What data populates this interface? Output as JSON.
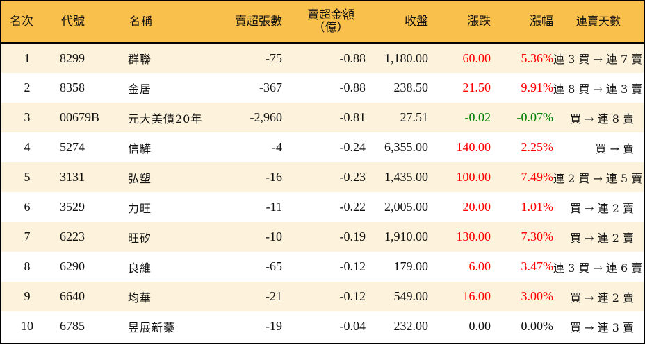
{
  "table": {
    "headers": {
      "rank": "名次",
      "code": "代號",
      "name": "名稱",
      "net_sell_volume": "賣超張數",
      "net_sell_amount_line1": "賣超金額",
      "net_sell_amount_line2": "（億）",
      "close": "收盤",
      "change": "漲跌",
      "change_pct": "漲幅",
      "streak": "連賣天數"
    },
    "colors": {
      "header_bg": "#f9c04c",
      "row_odd_bg": "#fdf3dc",
      "row_even_bg": "#ffffff",
      "up": "#ff0000",
      "down": "#008000",
      "flat": "#111111",
      "border": "#000000"
    },
    "rows": [
      {
        "rank": "1",
        "code": "8299",
        "name": "群聯",
        "volume": "-75",
        "amount": "-0.88",
        "close": "1,180.00",
        "change": "60.00",
        "pct": "5.36%",
        "dir": "up",
        "streak": "連 3 買 → 連 7 賣"
      },
      {
        "rank": "2",
        "code": "8358",
        "name": "金居",
        "volume": "-367",
        "amount": "-0.88",
        "close": "238.50",
        "change": "21.50",
        "pct": "9.91%",
        "dir": "up",
        "streak": "連 8 買 → 連 3 賣"
      },
      {
        "rank": "3",
        "code": "00679B",
        "name": "元大美債20年",
        "volume": "-2,960",
        "amount": "-0.81",
        "close": "27.51",
        "change": "-0.02",
        "pct": "-0.07%",
        "dir": "down",
        "streak": "買 → 連 8 賣"
      },
      {
        "rank": "4",
        "code": "5274",
        "name": "信驊",
        "volume": "-4",
        "amount": "-0.24",
        "close": "6,355.00",
        "change": "140.00",
        "pct": "2.25%",
        "dir": "up",
        "streak": "買 → 賣"
      },
      {
        "rank": "5",
        "code": "3131",
        "name": "弘塑",
        "volume": "-16",
        "amount": "-0.23",
        "close": "1,435.00",
        "change": "100.00",
        "pct": "7.49%",
        "dir": "up",
        "streak": "連 2 買 → 連 5 賣"
      },
      {
        "rank": "6",
        "code": "3529",
        "name": "力旺",
        "volume": "-11",
        "amount": "-0.22",
        "close": "2,005.00",
        "change": "20.00",
        "pct": "1.01%",
        "dir": "up",
        "streak": "買 → 連 2 賣"
      },
      {
        "rank": "7",
        "code": "6223",
        "name": "旺矽",
        "volume": "-10",
        "amount": "-0.19",
        "close": "1,910.00",
        "change": "130.00",
        "pct": "7.30%",
        "dir": "up",
        "streak": "買 → 連 2 賣"
      },
      {
        "rank": "8",
        "code": "6290",
        "name": "良維",
        "volume": "-65",
        "amount": "-0.12",
        "close": "179.00",
        "change": "6.00",
        "pct": "3.47%",
        "dir": "up",
        "streak": "連 3 買 → 連 6 賣"
      },
      {
        "rank": "9",
        "code": "6640",
        "name": "均華",
        "volume": "-21",
        "amount": "-0.12",
        "close": "549.00",
        "change": "16.00",
        "pct": "3.00%",
        "dir": "up",
        "streak": "買 → 連 2 賣"
      },
      {
        "rank": "10",
        "code": "6785",
        "name": "昱展新藥",
        "volume": "-19",
        "amount": "-0.04",
        "close": "232.00",
        "change": "0.00",
        "pct": "0.00%",
        "dir": "flat",
        "streak": "買 → 連 3 賣"
      }
    ]
  }
}
